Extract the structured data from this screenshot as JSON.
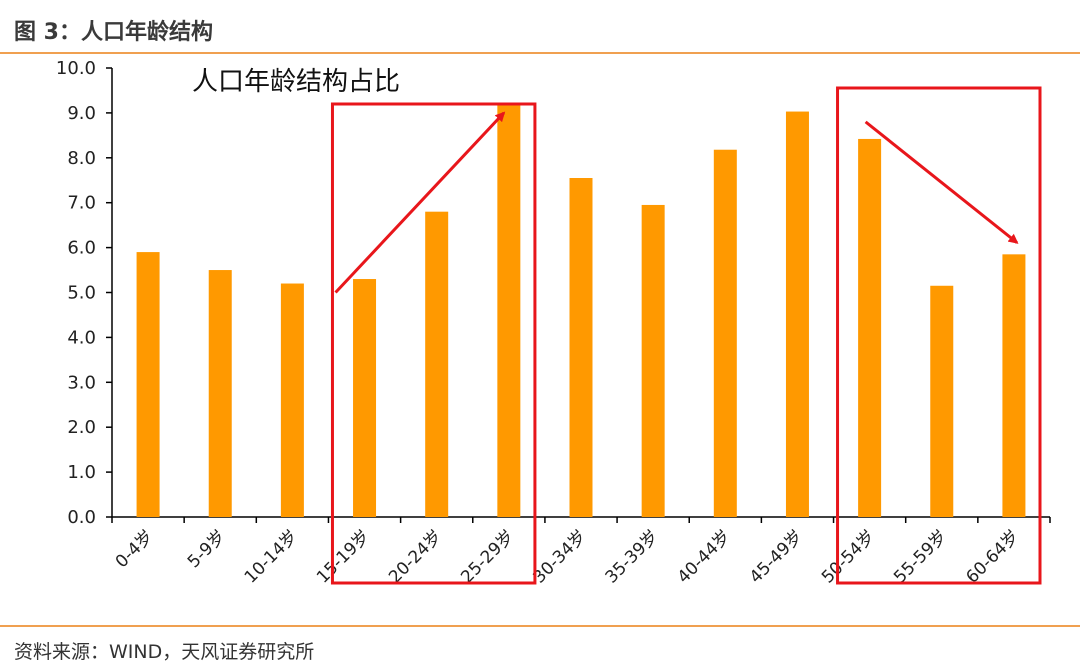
{
  "figure": {
    "label": "图 3：人口年龄结构",
    "source": "资料来源：WIND，天风证券研究所"
  },
  "colors": {
    "bar": "#FF9900",
    "accent_line": "#F0A050",
    "annotation": "#E8161B"
  },
  "chart_data": {
    "type": "bar",
    "title": "人口年龄结构占比",
    "xlabel": "",
    "ylabel": "",
    "ylim": [
      0,
      10
    ],
    "yticks": [
      "0.0",
      "1.0",
      "2.0",
      "3.0",
      "4.0",
      "5.0",
      "6.0",
      "7.0",
      "8.0",
      "9.0",
      "10.0"
    ],
    "categories": [
      "0-4岁",
      "5-9岁",
      "10-14岁",
      "15-19岁",
      "20-24岁",
      "25-29岁",
      "30-34岁",
      "35-39岁",
      "40-44岁",
      "45-49岁",
      "50-54岁",
      "55-59岁",
      "60-64岁"
    ],
    "values": [
      5.9,
      5.5,
      5.2,
      5.3,
      6.8,
      9.2,
      7.55,
      6.95,
      8.18,
      9.03,
      8.42,
      5.15,
      5.85
    ],
    "grid": false,
    "legend": "none",
    "annotations": [
      {
        "type": "box",
        "from_category": "15-19岁",
        "to_category": "25-29岁"
      },
      {
        "type": "arrow",
        "from": [
          "15-19岁",
          5.0
        ],
        "to": [
          "25-29岁",
          9.0
        ],
        "direction": "up"
      },
      {
        "type": "box",
        "from_category": "50-54岁",
        "to_category": "60-64岁"
      },
      {
        "type": "arrow",
        "from": [
          "50-54岁",
          8.8
        ],
        "to": [
          "60-64岁",
          6.0
        ],
        "direction": "down"
      }
    ]
  }
}
